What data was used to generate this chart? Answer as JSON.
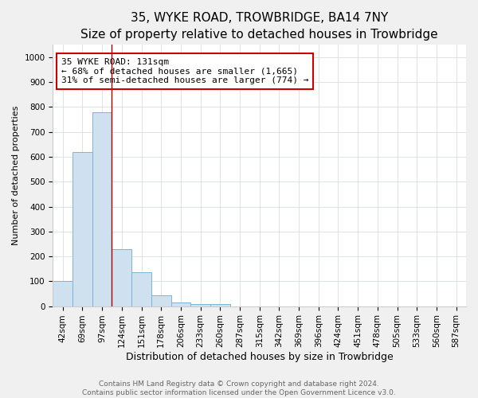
{
  "title": "35, WYKE ROAD, TROWBRIDGE, BA14 7NY",
  "subtitle": "Size of property relative to detached houses in Trowbridge",
  "xlabel": "Distribution of detached houses by size in Trowbridge",
  "ylabel": "Number of detached properties",
  "categories": [
    "42sqm",
    "69sqm",
    "97sqm",
    "124sqm",
    "151sqm",
    "178sqm",
    "206sqm",
    "233sqm",
    "260sqm",
    "287sqm",
    "315sqm",
    "342sqm",
    "369sqm",
    "396sqm",
    "424sqm",
    "451sqm",
    "478sqm",
    "505sqm",
    "533sqm",
    "560sqm",
    "587sqm"
  ],
  "values": [
    100,
    620,
    780,
    230,
    135,
    45,
    15,
    8,
    8,
    0,
    0,
    0,
    0,
    0,
    0,
    0,
    0,
    0,
    0,
    0,
    0
  ],
  "bar_color": "#cfe0ef",
  "bar_edge_color": "#7fb3d3",
  "bar_edge_width": 0.7,
  "red_line_x": 2.5,
  "annotation_title": "35 WYKE ROAD: 131sqm",
  "annotation_line1": "← 68% of detached houses are smaller (1,665)",
  "annotation_line2": "31% of semi-detached houses are larger (774) →",
  "annotation_box_color": "#ffffff",
  "annotation_box_edge": "#cc0000",
  "red_line_color": "#aa0000",
  "ylim": [
    0,
    1050
  ],
  "yticks": [
    0,
    100,
    200,
    300,
    400,
    500,
    600,
    700,
    800,
    900,
    1000
  ],
  "footer1": "Contains HM Land Registry data © Crown copyright and database right 2024.",
  "footer2": "Contains public sector information licensed under the Open Government Licence v3.0.",
  "background_color": "#f0f0f0",
  "plot_background": "#ffffff",
  "title_fontsize": 11,
  "subtitle_fontsize": 9.5,
  "xlabel_fontsize": 9,
  "ylabel_fontsize": 8,
  "tick_fontsize": 7.5,
  "footer_fontsize": 6.5,
  "annotation_fontsize": 8
}
